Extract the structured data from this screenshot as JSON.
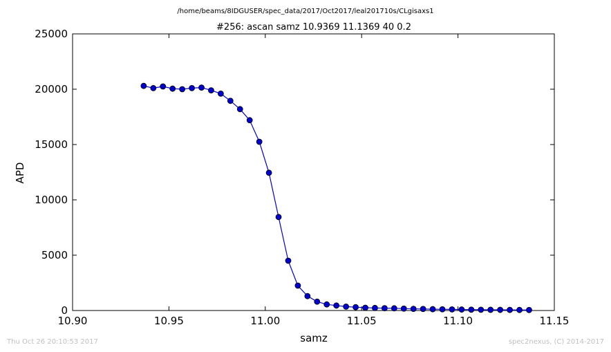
{
  "chart_data": {
    "type": "line",
    "suptitle": "/home/beams/8IDGUSER/spec_data/2017/Oct2017/leal201710s/CLgisaxs1",
    "title": "#256: ascan  samz 10.9369 11.1369  40 0.2",
    "xlabel": "samz",
    "ylabel": "APD",
    "xlim": [
      10.9,
      11.15
    ],
    "ylim": [
      0,
      25000
    ],
    "xticks": [
      10.9,
      10.95,
      11.0,
      11.05,
      11.1,
      11.15
    ],
    "xtick_labels": [
      "10.90",
      "10.95",
      "11.00",
      "11.05",
      "11.10",
      "11.15"
    ],
    "yticks": [
      0,
      5000,
      10000,
      15000,
      20000,
      25000
    ],
    "ytick_labels": [
      "0",
      "5000",
      "10000",
      "15000",
      "20000",
      "25000"
    ],
    "grid": false,
    "color": "#0000cc",
    "marker": "circle",
    "series": [
      {
        "x": [
          10.9369,
          10.9419,
          10.9469,
          10.9519,
          10.9569,
          10.9619,
          10.9669,
          10.9719,
          10.9769,
          10.9819,
          10.9869,
          10.9919,
          10.9969,
          11.0019,
          11.0069,
          11.0119,
          11.0169,
          11.0219,
          11.0269,
          11.0319,
          11.0369,
          11.0419,
          11.0469,
          11.0519,
          11.0569,
          11.0619,
          11.0669,
          11.0719,
          11.0769,
          11.0819,
          11.0869,
          11.0919,
          11.0969,
          11.1019,
          11.1069,
          11.1119,
          11.1169,
          11.1219,
          11.1269,
          11.1319,
          11.1369
        ],
        "y": [
          20300,
          20100,
          20250,
          20050,
          20000,
          20100,
          20150,
          19900,
          19600,
          18950,
          18200,
          17200,
          15250,
          12450,
          8450,
          4500,
          2250,
          1300,
          800,
          550,
          450,
          350,
          300,
          250,
          230,
          210,
          200,
          170,
          150,
          140,
          120,
          110,
          100,
          90,
          80,
          70,
          65,
          60,
          55,
          50,
          45
        ]
      }
    ]
  },
  "footer": {
    "timestamp": "Thu Oct 26 20:10:53 2017",
    "credit": "spec2nexus, (C) 2014-2017"
  }
}
